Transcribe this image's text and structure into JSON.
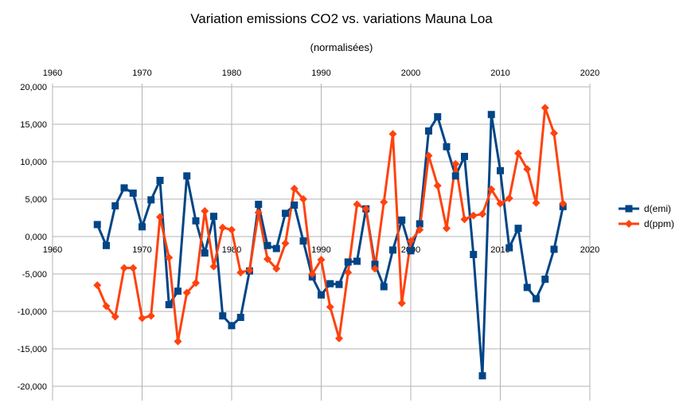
{
  "chart_data": {
    "type": "line",
    "title": "Variation emissions CO2 vs. variations Mauna Loa",
    "subtitle": "(normalisées)",
    "xlim": [
      1960,
      2020
    ],
    "ylim": [
      -20000,
      20000
    ],
    "xticks": [
      1960,
      1970,
      1980,
      1990,
      2000,
      2010,
      2020
    ],
    "yticks": [
      20000,
      15000,
      10000,
      5000,
      0,
      -5000,
      -10000,
      -15000,
      -20000
    ],
    "ytick_labels": [
      "20,000",
      "15,000",
      "10,000",
      "5,000",
      "0,000",
      "-5,000",
      "-10,000",
      "-15,000",
      "-20,000"
    ],
    "grid": true,
    "legend": "right",
    "series": [
      {
        "name": "d(emi)",
        "color": "#004586",
        "marker": "square",
        "x": [
          1965,
          1966,
          1967,
          1968,
          1969,
          1970,
          1971,
          1972,
          1973,
          1974,
          1975,
          1976,
          1977,
          1978,
          1979,
          1980,
          1981,
          1982,
          1983,
          1984,
          1985,
          1986,
          1987,
          1988,
          1989,
          1990,
          1991,
          1992,
          1993,
          1994,
          1995,
          1996,
          1997,
          1998,
          1999,
          2000,
          2001,
          2002,
          2003,
          2004,
          2005,
          2006,
          2007,
          2008,
          2009,
          2010,
          2011,
          2012,
          2013,
          2014,
          2015,
          2016,
          2017
        ],
        "values": [
          1600,
          -1200,
          4100,
          6500,
          5800,
          1300,
          4900,
          7500,
          -9100,
          -7300,
          8100,
          2100,
          -2200,
          2700,
          -10600,
          -11900,
          -10800,
          -4600,
          4300,
          -1200,
          -1600,
          3100,
          4200,
          -600,
          -5400,
          -7800,
          -6300,
          -6400,
          -3400,
          -3300,
          3700,
          -3700,
          -6700,
          -1800,
          2200,
          -1900,
          1700,
          14100,
          16000,
          12000,
          8100,
          10700,
          -2400,
          -18600,
          16300,
          8800,
          -1500,
          1100,
          -6800,
          -8300,
          -5700,
          -1700,
          4000
        ]
      },
      {
        "name": "d(ppm)",
        "color": "#ff420e",
        "marker": "diamond",
        "x": [
          1965,
          1966,
          1967,
          1968,
          1969,
          1970,
          1971,
          1972,
          1973,
          1974,
          1975,
          1976,
          1977,
          1978,
          1979,
          1980,
          1981,
          1982,
          1983,
          1984,
          1985,
          1986,
          1987,
          1988,
          1989,
          1990,
          1991,
          1992,
          1993,
          1994,
          1995,
          1996,
          1997,
          1998,
          1999,
          2000,
          2001,
          2002,
          2003,
          2004,
          2005,
          2006,
          2007,
          2008,
          2009,
          2010,
          2011,
          2012,
          2013,
          2014,
          2015,
          2016,
          2017
        ],
        "values": [
          -6500,
          -9300,
          -10700,
          -4200,
          -4200,
          -10900,
          -10600,
          2600,
          -2800,
          -14000,
          -7500,
          -6200,
          3400,
          -4000,
          1200,
          900,
          -4800,
          -4500,
          3200,
          -3000,
          -4300,
          -900,
          6400,
          5000,
          -5000,
          -3100,
          -9400,
          -13600,
          -4800,
          4300,
          3700,
          -4300,
          4600,
          13700,
          -8900,
          -600,
          900,
          10800,
          6800,
          1100,
          9700,
          2300,
          2800,
          3000,
          6300,
          4400,
          5100,
          11100,
          9000,
          4500,
          17200,
          13800,
          4400
        ]
      }
    ]
  }
}
